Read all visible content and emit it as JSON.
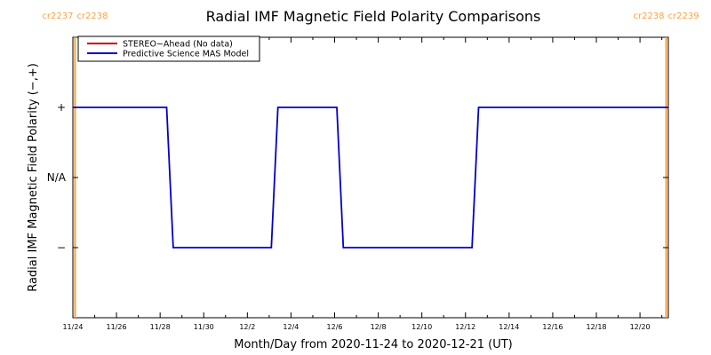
{
  "chart_data": {
    "type": "line",
    "title": "Radial IMF Magnetic Field Polarity Comparisons",
    "xlabel": "Month/Day from 2020-11-24 to 2020-12-21 (UT)",
    "ylabel": "Radial IMF Magnetic Field Polarity (−,+)",
    "x_range_days": [
      0,
      27.3
    ],
    "y_range": [
      -2,
      2
    ],
    "y_ticks": [
      {
        "label": "+",
        "value": 1
      },
      {
        "label": "N/A",
        "value": 0
      },
      {
        "label": "−",
        "value": -1
      }
    ],
    "x_ticks": [
      {
        "label": "11/24",
        "day": 0
      },
      {
        "label": "11/26",
        "day": 2
      },
      {
        "label": "11/28",
        "day": 4
      },
      {
        "label": "11/30",
        "day": 6
      },
      {
        "label": "12/2",
        "day": 8
      },
      {
        "label": "12/4",
        "day": 10
      },
      {
        "label": "12/6",
        "day": 12
      },
      {
        "label": "12/8",
        "day": 14
      },
      {
        "label": "12/10",
        "day": 16
      },
      {
        "label": "12/12",
        "day": 18
      },
      {
        "label": "12/14",
        "day": 20
      },
      {
        "label": "12/16",
        "day": 22
      },
      {
        "label": "12/18",
        "day": 24
      },
      {
        "label": "12/20",
        "day": 26
      }
    ],
    "carrington_markers": [
      {
        "left": "cr2237",
        "right": "cr2238",
        "day": 0.1
      },
      {
        "left": "cr2238",
        "right": "cr2239",
        "day": 27.2
      }
    ],
    "legend": {
      "placement": "top-left",
      "entries": [
        {
          "name": "STEREO−Ahead (No data)",
          "color": "#cc0000"
        },
        {
          "name": "Predictive Science MAS Model",
          "color": "#0000cc"
        }
      ]
    },
    "series": [
      {
        "name": "Predictive Science MAS Model",
        "color": "#0000cc",
        "points": [
          [
            0.0,
            1
          ],
          [
            4.3,
            1
          ],
          [
            4.6,
            -1
          ],
          [
            9.1,
            -1
          ],
          [
            9.4,
            1
          ],
          [
            12.1,
            1
          ],
          [
            12.4,
            -1
          ],
          [
            18.3,
            -1
          ],
          [
            18.6,
            1
          ],
          [
            27.3,
            1
          ]
        ]
      }
    ]
  }
}
